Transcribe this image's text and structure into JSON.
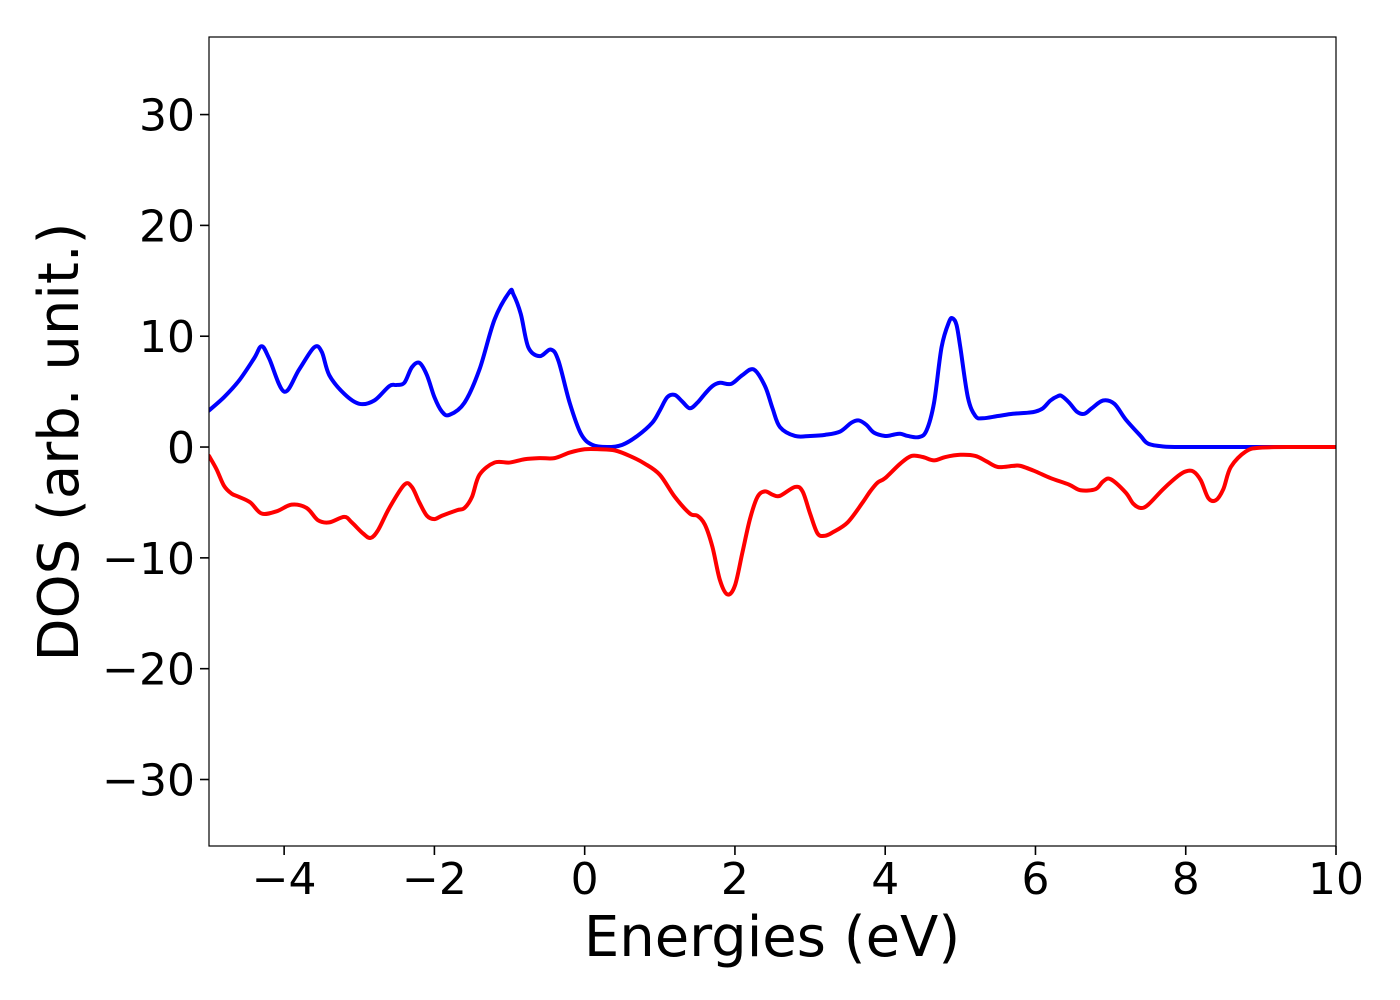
{
  "chart_data": {
    "type": "line",
    "xlabel": "Energies (eV)",
    "ylabel": "DOS (arb. unit.)",
    "xlim": [
      -5,
      10
    ],
    "ylim": [
      -36,
      37
    ],
    "xticks": [
      -4,
      -2,
      0,
      2,
      4,
      6,
      8,
      10
    ],
    "yticks": [
      -30,
      -20,
      -10,
      0,
      10,
      20,
      30
    ],
    "xtick_labels": [
      "−4",
      "−2",
      "0",
      "2",
      "4",
      "6",
      "8",
      "10"
    ],
    "ytick_labels": [
      "−30",
      "−20",
      "−10",
      "0",
      "10",
      "20",
      "30"
    ],
    "grid": false,
    "legend": "none",
    "series": [
      {
        "color": "#0000ff",
        "x": [
          -5.0,
          -4.8,
          -4.6,
          -4.4,
          -4.3,
          -4.2,
          -4.0,
          -3.8,
          -3.6,
          -3.5,
          -3.4,
          -3.2,
          -3.0,
          -2.8,
          -2.6,
          -2.5,
          -2.4,
          -2.3,
          -2.2,
          -2.1,
          -2.0,
          -1.9,
          -1.8,
          -1.6,
          -1.4,
          -1.2,
          -1.0,
          -0.95,
          -0.85,
          -0.75,
          -0.6,
          -0.45,
          -0.35,
          -0.2,
          -0.05,
          0.1,
          0.3,
          0.5,
          0.7,
          0.9,
          1.0,
          1.1,
          1.2,
          1.3,
          1.4,
          1.5,
          1.6,
          1.7,
          1.8,
          1.95,
          2.1,
          2.25,
          2.4,
          2.5,
          2.6,
          2.8,
          3.0,
          3.2,
          3.4,
          3.55,
          3.65,
          3.75,
          3.85,
          4.0,
          4.1,
          4.2,
          4.3,
          4.45,
          4.55,
          4.65,
          4.75,
          4.85,
          4.9,
          4.95,
          5.0,
          5.1,
          5.2,
          5.3,
          5.5,
          5.7,
          5.9,
          6.0,
          6.1,
          6.2,
          6.3,
          6.35,
          6.45,
          6.55,
          6.65,
          6.75,
          6.9,
          7.05,
          7.2,
          7.4,
          7.5,
          7.7,
          8.0,
          8.5,
          9.0,
          9.5,
          10.0
        ],
        "y": [
          3.3,
          4.5,
          6.0,
          8.0,
          9.1,
          8.0,
          5.0,
          7.0,
          9.0,
          8.6,
          6.5,
          4.8,
          3.9,
          4.2,
          5.5,
          5.6,
          5.8,
          7.2,
          7.6,
          6.5,
          4.5,
          3.2,
          2.9,
          4.0,
          7.0,
          11.5,
          14.0,
          13.8,
          12.0,
          9.0,
          8.2,
          8.8,
          7.8,
          4.0,
          1.2,
          0.2,
          0.0,
          0.2,
          1.0,
          2.2,
          3.3,
          4.5,
          4.7,
          4.1,
          3.5,
          4.0,
          4.8,
          5.5,
          5.8,
          5.7,
          6.5,
          7.0,
          5.5,
          3.5,
          1.8,
          1.0,
          1.0,
          1.1,
          1.4,
          2.2,
          2.4,
          2.0,
          1.3,
          1.0,
          1.1,
          1.2,
          1.0,
          0.9,
          1.5,
          4.0,
          9.0,
          11.3,
          11.6,
          11.0,
          9.0,
          4.5,
          2.8,
          2.6,
          2.8,
          3.0,
          3.1,
          3.2,
          3.5,
          4.2,
          4.6,
          4.6,
          4.0,
          3.2,
          3.0,
          3.5,
          4.2,
          3.9,
          2.5,
          1.0,
          0.3,
          0.05,
          0.0,
          0.0,
          0.0,
          0.0,
          0.0
        ]
      },
      {
        "color": "#ff0000",
        "x": [
          -5.0,
          -4.9,
          -4.8,
          -4.7,
          -4.6,
          -4.45,
          -4.3,
          -4.1,
          -3.9,
          -3.7,
          -3.55,
          -3.4,
          -3.2,
          -3.1,
          -2.95,
          -2.85,
          -2.75,
          -2.6,
          -2.4,
          -2.3,
          -2.2,
          -2.1,
          -2.0,
          -1.9,
          -1.7,
          -1.6,
          -1.5,
          -1.4,
          -1.2,
          -1.0,
          -0.8,
          -0.6,
          -0.4,
          -0.2,
          0.0,
          0.2,
          0.4,
          0.6,
          0.8,
          1.0,
          1.2,
          1.4,
          1.5,
          1.6,
          1.7,
          1.8,
          1.9,
          2.0,
          2.1,
          2.2,
          2.3,
          2.4,
          2.5,
          2.6,
          2.8,
          2.9,
          3.0,
          3.1,
          3.2,
          3.3,
          3.5,
          3.7,
          3.8,
          3.9,
          4.0,
          4.2,
          4.35,
          4.5,
          4.65,
          4.8,
          5.0,
          5.2,
          5.35,
          5.5,
          5.7,
          5.8,
          6.0,
          6.2,
          6.45,
          6.6,
          6.8,
          6.9,
          7.0,
          7.2,
          7.3,
          7.4,
          7.5,
          7.7,
          7.9,
          8.0,
          8.1,
          8.2,
          8.3,
          8.4,
          8.5,
          8.6,
          8.8,
          9.0,
          9.5,
          10.0
        ],
        "y": [
          -0.8,
          -2.0,
          -3.5,
          -4.2,
          -4.5,
          -5.0,
          -6.0,
          -5.8,
          -5.2,
          -5.5,
          -6.6,
          -6.8,
          -6.3,
          -6.8,
          -7.8,
          -8.2,
          -7.5,
          -5.5,
          -3.4,
          -3.6,
          -5.0,
          -6.2,
          -6.5,
          -6.2,
          -5.7,
          -5.5,
          -4.5,
          -2.5,
          -1.4,
          -1.4,
          -1.1,
          -1.0,
          -1.0,
          -0.5,
          -0.2,
          -0.2,
          -0.3,
          -0.8,
          -1.5,
          -2.5,
          -4.5,
          -6.0,
          -6.2,
          -7.0,
          -9.0,
          -12.0,
          -13.3,
          -12.5,
          -9.5,
          -6.5,
          -4.5,
          -4.0,
          -4.3,
          -4.4,
          -3.6,
          -4.0,
          -6.0,
          -7.8,
          -8.0,
          -7.7,
          -6.8,
          -5.0,
          -4.0,
          -3.2,
          -2.8,
          -1.5,
          -0.8,
          -0.9,
          -1.2,
          -0.9,
          -0.7,
          -0.8,
          -1.3,
          -1.8,
          -1.7,
          -1.7,
          -2.2,
          -2.8,
          -3.4,
          -3.9,
          -3.8,
          -3.1,
          -2.9,
          -4.1,
          -5.1,
          -5.5,
          -5.2,
          -3.8,
          -2.6,
          -2.2,
          -2.2,
          -3.0,
          -4.6,
          -4.8,
          -3.8,
          -1.8,
          -0.4,
          -0.05,
          0.0,
          0.0
        ]
      }
    ]
  }
}
